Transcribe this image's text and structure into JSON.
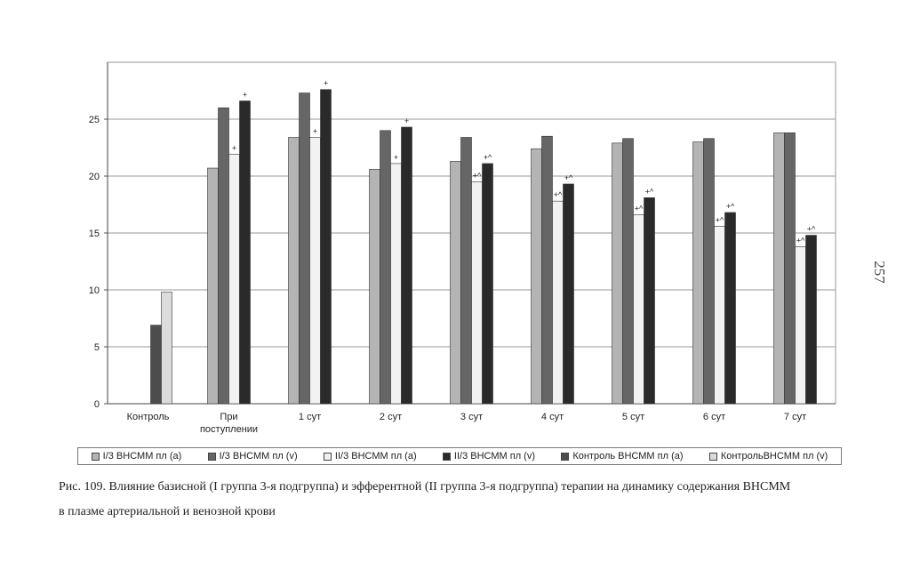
{
  "page_number": "257",
  "caption": {
    "line1": "Рис. 109. Влияние базисной (I группа 3-я подгруппа) и эфферентной (II группа 3-я подгруппа) терапии на динамику содержания ВНСММ",
    "line2": "в плазме артериальной и венозной крови"
  },
  "chart_data": {
    "type": "bar",
    "title": "",
    "xlabel": "",
    "ylabel": "",
    "ylim": [
      0,
      30
    ],
    "yticks": [
      0,
      5,
      10,
      15,
      20,
      25
    ],
    "grid": true,
    "legend_placement": "bottom",
    "categories": [
      [
        "Контроль"
      ],
      [
        "При",
        "поступлении"
      ],
      [
        "1 сут"
      ],
      [
        "2 сут"
      ],
      [
        "3 сут"
      ],
      [
        "4 сут"
      ],
      [
        "5 сут"
      ],
      [
        "6 сут"
      ],
      [
        "7 сут"
      ]
    ],
    "series": [
      {
        "name": "I/3 ВНСММ пл (а)",
        "color": "#b4b4b4",
        "values": [
          null,
          20.7,
          23.4,
          20.6,
          21.3,
          22.4,
          22.9,
          23.0,
          23.8
        ]
      },
      {
        "name": "I/3 ВНСММ пл (v)",
        "color": "#666666",
        "values": [
          null,
          26.0,
          27.3,
          24.0,
          23.4,
          23.5,
          23.3,
          23.3,
          23.8
        ]
      },
      {
        "name": "II/3 ВНСММ пл (а)",
        "color": "#f2f2f2",
        "values": [
          null,
          21.9,
          23.4,
          21.1,
          19.5,
          17.8,
          16.6,
          15.6,
          13.8
        ]
      },
      {
        "name": "II/3 ВНСММ пл (v)",
        "color": "#2a2a2a",
        "values": [
          null,
          26.6,
          27.6,
          24.3,
          21.1,
          19.3,
          18.1,
          16.8,
          14.8
        ]
      },
      {
        "name": "Контроль ВНСММ пл (а)",
        "color": "#4d4d4d",
        "values": [
          6.9,
          null,
          null,
          null,
          null,
          null,
          null,
          null,
          null
        ]
      },
      {
        "name": "КонтрольВНСММ пл (v)",
        "color": "#dcdcdc",
        "values": [
          9.8,
          null,
          null,
          null,
          null,
          null,
          null,
          null,
          null
        ]
      }
    ],
    "annotations": [
      {
        "category": 1,
        "series": 2,
        "text": "+"
      },
      {
        "category": 1,
        "series": 3,
        "text": "+"
      },
      {
        "category": 2,
        "series": 2,
        "text": "+"
      },
      {
        "category": 2,
        "series": 3,
        "text": "+"
      },
      {
        "category": 3,
        "series": 2,
        "text": "+"
      },
      {
        "category": 3,
        "series": 3,
        "text": "+"
      },
      {
        "category": 4,
        "series": 2,
        "text": "+^"
      },
      {
        "category": 4,
        "series": 3,
        "text": "+^"
      },
      {
        "category": 5,
        "series": 2,
        "text": "+^"
      },
      {
        "category": 5,
        "series": 3,
        "text": "+^"
      },
      {
        "category": 6,
        "series": 2,
        "text": "+^"
      },
      {
        "category": 6,
        "series": 3,
        "text": "+^"
      },
      {
        "category": 7,
        "series": 2,
        "text": "+^"
      },
      {
        "category": 7,
        "series": 3,
        "text": "+^"
      },
      {
        "category": 8,
        "series": 2,
        "text": "+^"
      },
      {
        "category": 8,
        "series": 3,
        "text": "+^"
      }
    ]
  }
}
